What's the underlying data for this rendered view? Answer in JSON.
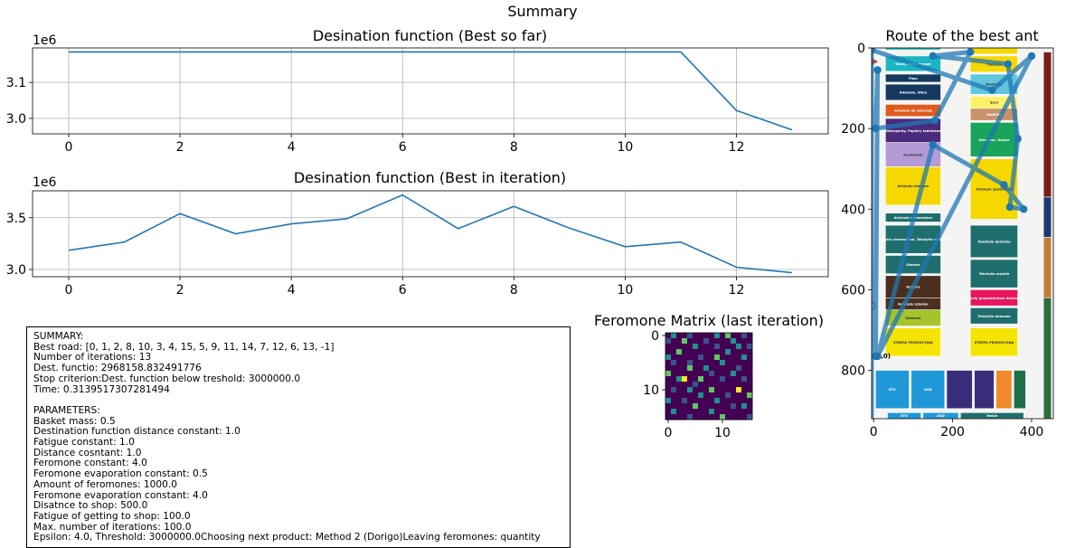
{
  "figure": {
    "suptitle": "Summary"
  },
  "chart_data": [
    {
      "type": "line",
      "title": "Desination function (Best so far)",
      "xlabel": "",
      "ylabel": "",
      "offset_label": "1e6",
      "x": [
        0,
        1,
        2,
        3,
        4,
        5,
        6,
        7,
        8,
        9,
        10,
        11,
        12,
        13
      ],
      "series": [
        {
          "values": [
            3185000,
            3185000,
            3185000,
            3185000,
            3185000,
            3185000,
            3185000,
            3185000,
            3185000,
            3185000,
            3185000,
            3185000,
            3022000,
            2968159
          ]
        }
      ],
      "xlim": [
        -0.65,
        13.65
      ],
      "ylim": [
        2957000,
        3196000
      ],
      "xticks": [
        0,
        2,
        4,
        6,
        8,
        10,
        12
      ],
      "yticks": [
        3000000,
        3100000
      ],
      "ytick_labels": [
        "3.0",
        "3.1"
      ],
      "grid": true,
      "color": "#1f77b4"
    },
    {
      "type": "line",
      "title": "Desination function (Best in iteration)",
      "xlabel": "",
      "ylabel": "",
      "offset_label": "1e6",
      "x": [
        0,
        1,
        2,
        3,
        4,
        5,
        6,
        7,
        8,
        9,
        10,
        11,
        12,
        13
      ],
      "series": [
        {
          "values": [
            3185000,
            3265000,
            3540000,
            3345000,
            3440000,
            3490000,
            3720000,
            3395000,
            3610000,
            3400000,
            3220000,
            3265000,
            3022000,
            2968159
          ]
        }
      ],
      "xlim": [
        -0.65,
        13.65
      ],
      "ylim": [
        2930000,
        3760000
      ],
      "xticks": [
        0,
        2,
        4,
        6,
        8,
        10,
        12
      ],
      "yticks": [
        3000000,
        3500000
      ],
      "ytick_labels": [
        "3.0",
        "3.5"
      ],
      "grid": true,
      "color": "#1f77b4"
    },
    {
      "type": "heatmap",
      "title": "Feromone Matrix (last iteration)",
      "size": 16,
      "xticks": [
        0,
        10
      ],
      "yticks": [
        0,
        10
      ],
      "colormap": [
        "#440154",
        "#3b528b",
        "#21918c",
        "#5ec962",
        "#fde725"
      ],
      "cells": [
        [
          0,
          2,
          0,
          0,
          1,
          0,
          0,
          0,
          0,
          2,
          0,
          3,
          0,
          0,
          1,
          0
        ],
        [
          1,
          0,
          0,
          3,
          0,
          0,
          0,
          1,
          0,
          0,
          0,
          0,
          2,
          0,
          0,
          0
        ],
        [
          0,
          0,
          0,
          0,
          0,
          2,
          0,
          0,
          0,
          1,
          0,
          0,
          0,
          2,
          0,
          1
        ],
        [
          0,
          0,
          3,
          0,
          0,
          0,
          0,
          0,
          0,
          0,
          0,
          2,
          0,
          0,
          0,
          0
        ],
        [
          2,
          0,
          0,
          0,
          0,
          0,
          1,
          0,
          0,
          3,
          0,
          0,
          0,
          0,
          2,
          0
        ],
        [
          0,
          1,
          0,
          0,
          1,
          0,
          0,
          0,
          0,
          0,
          2,
          0,
          0,
          0,
          0,
          0
        ],
        [
          0,
          0,
          0,
          0,
          3,
          0,
          0,
          2,
          0,
          0,
          0,
          0,
          0,
          1,
          0,
          0
        ],
        [
          3,
          0,
          0,
          0,
          0,
          0,
          0,
          0,
          1,
          0,
          0,
          0,
          2,
          0,
          0,
          0
        ],
        [
          0,
          0,
          2,
          4,
          0,
          0,
          3,
          0,
          0,
          0,
          1,
          0,
          0,
          0,
          1,
          0
        ],
        [
          0,
          0,
          0,
          0,
          0,
          1,
          0,
          0,
          0,
          0,
          0,
          0,
          0,
          0,
          0,
          0
        ],
        [
          0,
          1,
          0,
          0,
          2,
          0,
          0,
          0,
          3,
          0,
          0,
          0,
          0,
          4,
          0,
          0
        ],
        [
          0,
          0,
          0,
          0,
          0,
          0,
          2,
          0,
          0,
          0,
          0,
          1,
          0,
          0,
          0,
          3
        ],
        [
          2,
          0,
          0,
          1,
          0,
          0,
          0,
          0,
          0,
          2,
          0,
          0,
          0,
          0,
          0,
          0
        ],
        [
          0,
          0,
          0,
          0,
          0,
          3,
          0,
          0,
          0,
          0,
          0,
          0,
          1,
          0,
          2,
          0
        ],
        [
          0,
          2,
          0,
          0,
          0,
          0,
          0,
          0,
          2,
          0,
          0,
          0,
          0,
          0,
          0,
          0
        ],
        [
          0,
          0,
          0,
          0,
          1,
          0,
          0,
          0,
          0,
          0,
          3,
          0,
          0,
          0,
          0,
          1
        ]
      ]
    },
    {
      "type": "scatter",
      "title": "Route of the best ant",
      "xlabel": "",
      "ylabel": "",
      "xlim": [
        -5,
        455
      ],
      "ylim": [
        920,
        0
      ],
      "xticks": [
        0,
        200,
        400
      ],
      "yticks": [
        0,
        200,
        400,
        600,
        800
      ],
      "route": [
        [
          5,
          765
        ],
        [
          10,
          55
        ],
        [
          5,
          200
        ],
        [
          155,
          180
        ],
        [
          245,
          10
        ],
        [
          150,
          20
        ],
        [
          340,
          40
        ],
        [
          365,
          225
        ],
        [
          345,
          395
        ],
        [
          380,
          400
        ],
        [
          330,
          340
        ],
        [
          150,
          240
        ],
        [
          10,
          765
        ],
        [
          400,
          20
        ],
        [
          300,
          105
        ],
        [
          -5,
          5
        ],
        [
          -5,
          960
        ]
      ],
      "route_color": "#1f77b4",
      "background": "store floor-plan image"
    }
  ],
  "summary": {
    "text": "SUMMARY:\nBest road: [0, 1, 2, 8, 10, 3, 4, 15, 5, 9, 11, 14, 7, 12, 6, 13, -1]\nNumber of iterations: 13\nDest. functio: 2968158.832491776\nStop criterion:Dest. function below treshold: 3000000.0\nTime: 0.3139517307281494\n\nPARAMETERS:\nBasket mass: 0.5\nDestination function distance constant: 1.0\nFatigue constant: 1.0\nDistance cosntant: 1.0\nFeromone constant: 4.0\nFeromone evaporation constant: 0.5\nAmount of feromones: 1000.0\nFeromone evaporation constant: 4.0\nDisatnce to shop: 500.0\nFatigue of getting to shop: 100.0\nMax. number of iterations: 100.0\nEpsilon: 4.0, Threshold: 3000000.0Choosing next product: Method 2 (Dorigo)Leaving feromones: quantity"
  },
  "floorplan": {
    "labels": [
      "Woda, Soki, Napoje",
      "Piwo",
      "Alkohole, Wina",
      "Artykuły do zwierząt",
      "Detergenty, Papiery toaletowe",
      "Kosmetyki",
      "Artykuły biurowe",
      "Artykuły niemowlęce",
      "Tekstylia niemowlęce, Tekstylia dziecięce",
      "Obuwie",
      "Kultura",
      "Artykuły szkolne",
      "Zabawki",
      "Tłuszcze",
      "Mrożonki",
      "Sery",
      "Wędliny",
      "Warzywa, Owoce",
      "Artykuły spożywcze",
      "Tekstylia damskie",
      "Tekstylia męskie",
      "Artykuły gospodarstwa domowego",
      "Tekstylia domowe",
      "STREFA PROMOCYJNA",
      "RTV",
      "AGD",
      "Meble",
      "(0,0)"
    ]
  }
}
